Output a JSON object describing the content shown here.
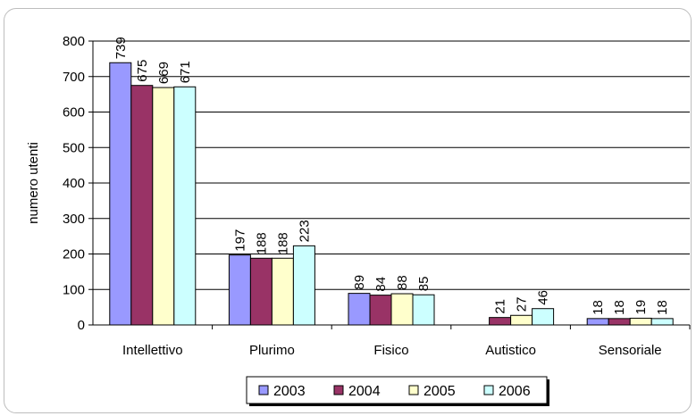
{
  "chart_data": {
    "type": "bar",
    "title": "",
    "xlabel": "",
    "ylabel": "numero utenti",
    "ylim": [
      0,
      800
    ],
    "yticks": [
      0,
      100,
      200,
      300,
      400,
      500,
      600,
      700,
      800
    ],
    "grid": true,
    "legend_position": "bottom",
    "categories": [
      "Intellettivo",
      "Plurimo",
      "Fisico",
      "Autistico",
      "Sensoriale"
    ],
    "series": [
      {
        "name": "2003",
        "color": "#9999ff",
        "values": [
          739,
          197,
          89,
          null,
          18
        ]
      },
      {
        "name": "2004",
        "color": "#993366",
        "values": [
          675,
          188,
          84,
          21,
          18
        ]
      },
      {
        "name": "2005",
        "color": "#ffffcc",
        "values": [
          669,
          188,
          88,
          27,
          19
        ]
      },
      {
        "name": "2006",
        "color": "#ccffff",
        "values": [
          671,
          223,
          85,
          46,
          18
        ]
      }
    ]
  }
}
